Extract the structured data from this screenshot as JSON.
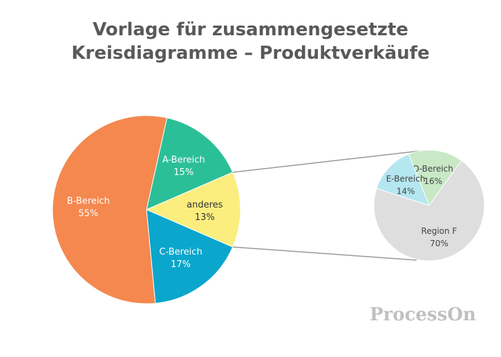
{
  "chart_data": {
    "type": "pie",
    "title_lines": [
      "Vorlage für zusammengesetzte",
      "Kreisdiagramme – Produktverkäufe"
    ],
    "main_pie": {
      "slices": [
        {
          "label": "A-Bereich",
          "value": 15,
          "display": "15%",
          "color": "#2bbf98",
          "text_color": "#ffffff"
        },
        {
          "label": "anderes",
          "value": 13,
          "display": "13%",
          "color": "#fbee7e",
          "text_color": "#333333"
        },
        {
          "label": "C-Bereich",
          "value": 17,
          "display": "17%",
          "color": "#0aa6cc",
          "text_color": "#ffffff"
        },
        {
          "label": "B-Bereich",
          "value": 55,
          "display": "55%",
          "color": "#f4884f",
          "text_color": "#ffffff"
        }
      ]
    },
    "secondary_pie": {
      "slices": [
        {
          "label": "D-Bereich",
          "value": 16,
          "display": "16%",
          "color": "#c8e8c6",
          "text_color": "#444444"
        },
        {
          "label": "Region F",
          "value": 70,
          "display": "70%",
          "color": "#dedede",
          "text_color": "#444444"
        },
        {
          "label": "E-Bereich",
          "value": 14,
          "display": "14%",
          "color": "#b4e7f0",
          "text_color": "#444444"
        }
      ]
    },
    "connector_color": "#999999"
  },
  "watermark": "ProcessOn"
}
